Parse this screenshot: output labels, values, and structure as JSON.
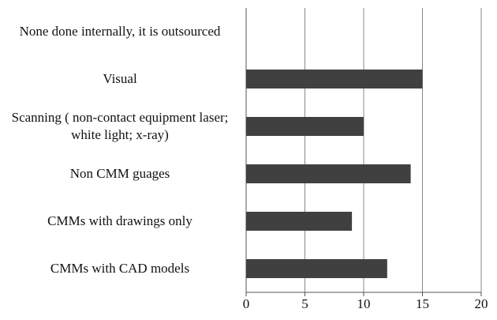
{
  "chart_data": {
    "type": "bar",
    "orientation": "horizontal",
    "categories": [
      "None done internally, it is outsourced",
      "Visual",
      "Scanning ( non-contact equipment laser; white light; x-ray)",
      "Non CMM guages",
      "CMMs with drawings only",
      "CMMs with CAD models"
    ],
    "values": [
      0,
      15,
      10,
      14,
      9,
      12
    ],
    "color": "#404040",
    "xlim": [
      0,
      20
    ],
    "xticks": [
      0,
      5,
      10,
      15,
      20
    ],
    "grid": true
  }
}
